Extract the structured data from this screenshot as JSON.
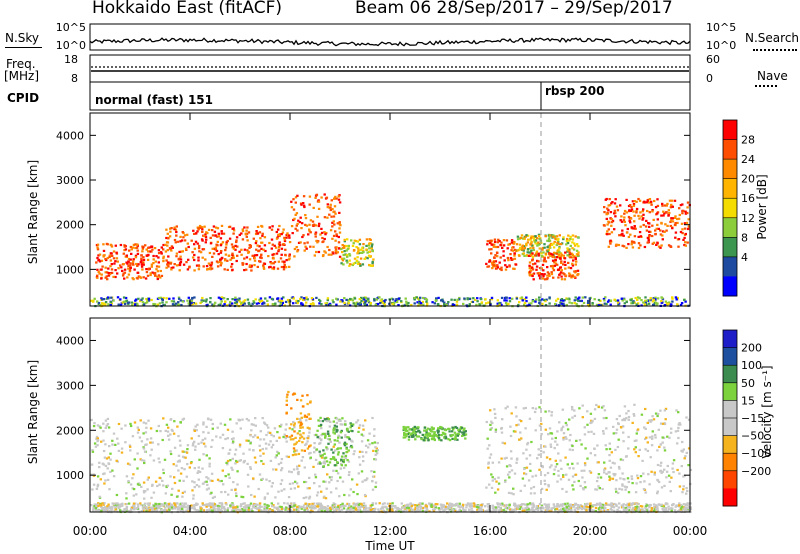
{
  "header": {
    "station": "Hokkaido East (fitACF)",
    "beam_range": "Beam 06  28/Sep/2017 – 29/Sep/2017"
  },
  "nsky": {
    "left_label": "N.Sky",
    "left_ticks": [
      "10^5",
      "10^0"
    ],
    "right_ticks": [
      "10^5",
      "10^0"
    ],
    "right_label": "N.Search"
  },
  "freq": {
    "left_label_1": "Freq.",
    "left_label_2": "[MHz]",
    "left_ticks": [
      "18",
      "8"
    ],
    "right_ticks": [
      "60",
      "0"
    ],
    "right_label": "Nave"
  },
  "cpid": {
    "label": "CPID",
    "modes": [
      {
        "text": "normal (fast) 151",
        "start_hour": 0
      },
      {
        "text": "rbsp 200",
        "start_hour": 18
      }
    ]
  },
  "time_axis": {
    "label": "Time UT",
    "ticks": [
      "00:00",
      "04:00",
      "08:00",
      "12:00",
      "16:00",
      "20:00",
      "00:00"
    ]
  },
  "power_panel": {
    "ylabel": "Slant Range [km]",
    "yticks": [
      "1000",
      "2000",
      "3000",
      "4000"
    ],
    "colorbar_label": "Power [dB]",
    "colorbar_ticks": [
      "28",
      "24",
      "20",
      "16",
      "12",
      "8",
      "4"
    ],
    "colors": [
      "#ff0000",
      "#ff4d00",
      "#ff8a00",
      "#ffb400",
      "#f5dc00",
      "#8ccd3c",
      "#3c9650",
      "#1e4ba0",
      "#0000ff"
    ]
  },
  "velocity_panel": {
    "ylabel": "Slant Range [km]",
    "yticks": [
      "1000",
      "2000",
      "3000",
      "4000"
    ],
    "colorbar_label": "Velocity [m s⁻¹]",
    "colorbar_ticks": [
      "200",
      "100",
      "50",
      "15",
      "−15",
      "−50",
      "−100",
      "−200"
    ],
    "colors": [
      "#1e1ec8",
      "#1e50a0",
      "#3c8c50",
      "#7cd23c",
      "#c8c8c8",
      "#c8c8c8",
      "#f5b41e",
      "#ff8200",
      "#ff4600",
      "#ff0000"
    ]
  },
  "chart_data": {
    "type": "heatmap",
    "x": {
      "label": "Time UT",
      "range_hours": [
        0,
        24
      ]
    },
    "y": {
      "label": "Slant Range [km]",
      "range_km": [
        180,
        4500
      ]
    },
    "power_echo_regions": [
      {
        "t": [
          0.2,
          3.0
        ],
        "r": [
          800,
          1600
        ],
        "level": "high"
      },
      {
        "t": [
          3.0,
          8.0
        ],
        "r": [
          1000,
          2000
        ],
        "level": "high"
      },
      {
        "t": [
          8.0,
          10.0
        ],
        "r": [
          1300,
          2700
        ],
        "level": "high"
      },
      {
        "t": [
          10.0,
          11.3
        ],
        "r": [
          1100,
          1700
        ],
        "level": "medium"
      },
      {
        "t": [
          15.8,
          17.0
        ],
        "r": [
          1000,
          1700
        ],
        "level": "high"
      },
      {
        "t": [
          17.0,
          19.5
        ],
        "r": [
          1300,
          1800
        ],
        "level": "medium"
      },
      {
        "t": [
          17.5,
          19.5
        ],
        "r": [
          800,
          1400
        ],
        "level": "high"
      },
      {
        "t": [
          20.5,
          24.0
        ],
        "r": [
          1500,
          2600
        ],
        "level": "high"
      },
      {
        "t": [
          0.0,
          24.0
        ],
        "r": [
          200,
          400
        ],
        "level": "low"
      }
    ],
    "velocity_echo_regions": [
      {
        "t": [
          0.0,
          11.5
        ],
        "r": [
          500,
          2300
        ],
        "v": "low"
      },
      {
        "t": [
          7.8,
          8.8
        ],
        "r": [
          1400,
          2900
        ],
        "v": "negative"
      },
      {
        "t": [
          9.0,
          10.5
        ],
        "r": [
          1200,
          2300
        ],
        "v": "positive"
      },
      {
        "t": [
          12.5,
          15.0
        ],
        "r": [
          1800,
          2100
        ],
        "v": "positive"
      },
      {
        "t": [
          15.8,
          24.0
        ],
        "r": [
          600,
          2600
        ],
        "v": "low"
      },
      {
        "t": [
          0.0,
          24.0
        ],
        "r": [
          200,
          400
        ],
        "v": "low"
      }
    ]
  }
}
